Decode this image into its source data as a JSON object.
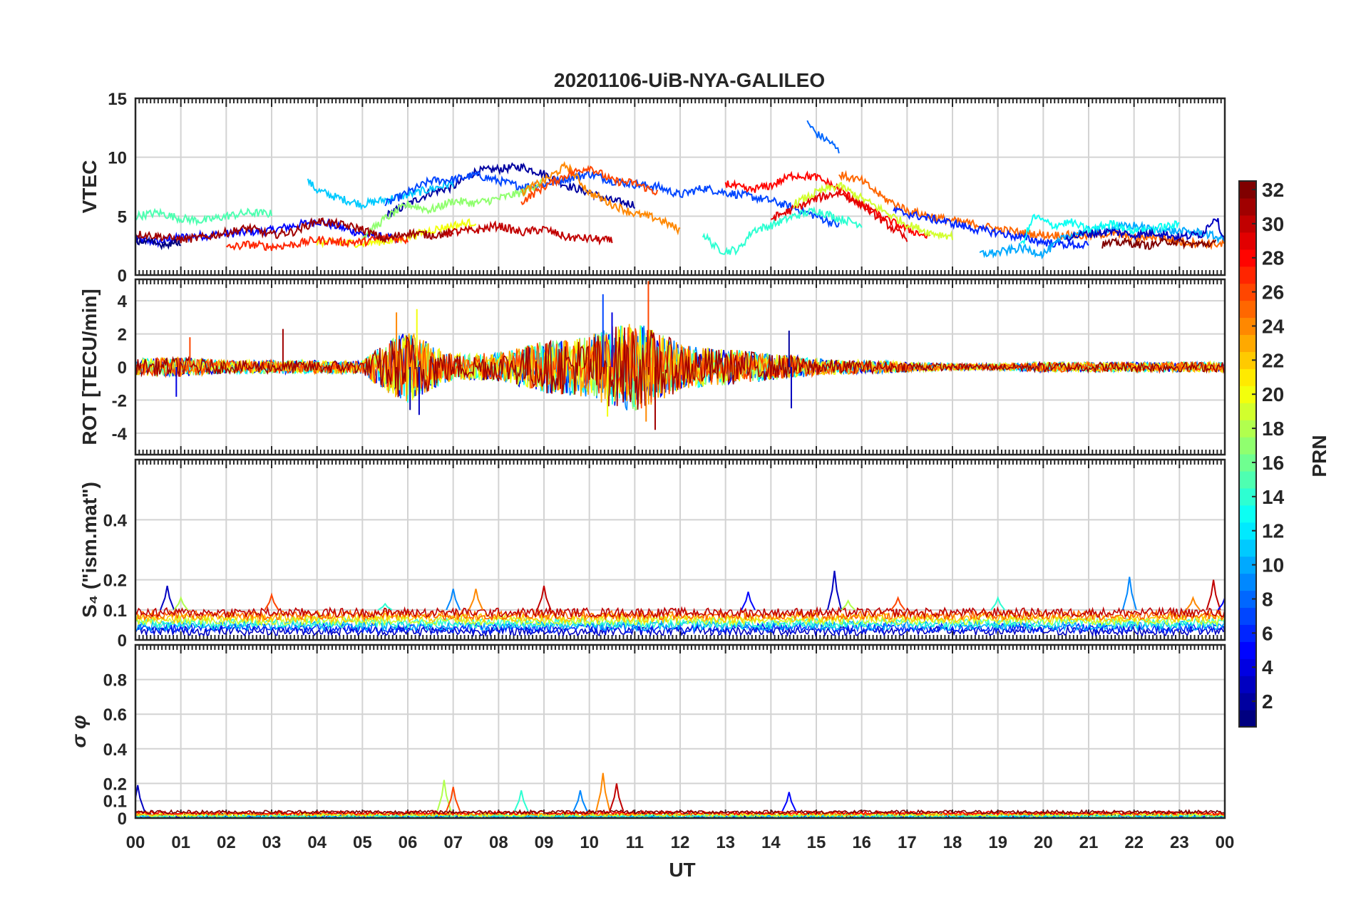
{
  "chart_data": {
    "type": "line",
    "title": "20201106-UiB-NYA-GALILEO",
    "xlabel": "UT",
    "x_ticks": [
      "00",
      "01",
      "02",
      "03",
      "04",
      "05",
      "06",
      "07",
      "08",
      "09",
      "10",
      "11",
      "12",
      "13",
      "14",
      "15",
      "16",
      "17",
      "18",
      "19",
      "20",
      "21",
      "22",
      "23",
      "00"
    ],
    "xlim_hours": [
      0,
      24
    ],
    "colormap": "jet",
    "colorbar": {
      "label": "PRN",
      "range": [
        1,
        32
      ],
      "ticks": [
        "2",
        "4",
        "6",
        "8",
        "10",
        "12",
        "14",
        "16",
        "18",
        "20",
        "22",
        "24",
        "26",
        "28",
        "30",
        "32"
      ]
    },
    "panels": [
      {
        "ylabel": "VTEC",
        "ylim": [
          0,
          15
        ],
        "yticks": [
          "0",
          "5",
          "10",
          "15"
        ],
        "series": [
          {
            "prn": 5,
            "x": [
              0,
              0.5,
              1,
              2,
              3,
              4,
              5,
              5.8
            ],
            "y": [
              3.0,
              2.8,
              3.2,
              3.5,
              3.8,
              4.6,
              3.5,
              3.0
            ]
          },
          {
            "prn": 2,
            "x": [
              5.5,
              6,
              6.5,
              7,
              7.5,
              8,
              8.5,
              9,
              9.5,
              10,
              10.5,
              11
            ],
            "y": [
              5.0,
              6.0,
              7.0,
              7.5,
              8.8,
              9.0,
              9.2,
              8.6,
              7.6,
              7.0,
              6.3,
              6.0
            ]
          },
          {
            "prn": 11,
            "x": [
              3.8,
              4,
              4.5,
              5,
              5.5,
              6,
              6.5,
              7
            ],
            "y": [
              8.0,
              7.2,
              6.5,
              6.0,
              6.4,
              6.8,
              7.3,
              7.8
            ]
          },
          {
            "prn": 7,
            "x": [
              5.5,
              6,
              6.5,
              7,
              7.5,
              8,
              8.5,
              9,
              9.5,
              10,
              10.5,
              11,
              11.5,
              12,
              12.5,
              13,
              13.5,
              14,
              14.5,
              15,
              15.5
            ],
            "y": [
              6.0,
              7.0,
              8.0,
              8.1,
              8.5,
              8.0,
              7.5,
              7.7,
              8.2,
              8.6,
              8.0,
              7.7,
              7.5,
              6.8,
              7.4,
              7.0,
              6.7,
              6.3,
              5.7,
              5.0,
              4.2
            ]
          },
          {
            "prn": 8,
            "x": [
              14.8,
              15,
              15.3,
              15.5
            ],
            "y": [
              13.0,
              12.0,
              11.3,
              10.5
            ]
          },
          {
            "prn": 15,
            "x": [
              0,
              0.5,
              1,
              1.5,
              2,
              2.5,
              3
            ],
            "y": [
              5.0,
              5.3,
              4.8,
              4.6,
              5.0,
              5.3,
              5.2
            ]
          },
          {
            "prn": 14,
            "x": [
              12.5,
              12.8,
              13,
              13.3,
              13.6,
              14,
              14.5,
              15,
              15.5,
              16
            ],
            "y": [
              3.5,
              2.3,
              2.0,
              2.2,
              3.8,
              4.2,
              5.0,
              5.5,
              4.8,
              4.3
            ]
          },
          {
            "prn": 17,
            "x": [
              5,
              5.5,
              6,
              6.5,
              7,
              7.5,
              8,
              8.5,
              9
            ],
            "y": [
              3.2,
              4.8,
              6.0,
              5.5,
              6.3,
              6.1,
              6.5,
              7.0,
              8.0
            ]
          },
          {
            "prn": 20,
            "x": [
              4,
              5,
              5.8,
              6.5,
              7,
              7.5
            ],
            "y": [
              2.8,
              2.7,
              3.0,
              3.8,
              4.2,
              4.5
            ]
          },
          {
            "prn": 24,
            "x": [
              8.5,
              9,
              9.5,
              10,
              10.5,
              11,
              11.5,
              12
            ],
            "y": [
              7.0,
              8.0,
              9.3,
              7.0,
              6.0,
              5.2,
              4.8,
              3.8
            ]
          },
          {
            "prn": 26,
            "x": [
              8.5,
              9,
              9.5,
              10,
              10.5,
              11,
              11.5
            ],
            "y": [
              6.2,
              7.5,
              8.5,
              9.2,
              8.0,
              7.8,
              7.0
            ]
          },
          {
            "prn": 27,
            "x": [
              2,
              2.5,
              3,
              3.5,
              4,
              4.5,
              5,
              5.5,
              6
            ],
            "y": [
              2.3,
              2.6,
              2.4,
              2.6,
              3.0,
              2.8,
              2.8,
              3.2,
              3.0
            ]
          },
          {
            "prn": 31,
            "x": [
              0,
              0.5,
              1,
              1.5,
              2,
              2.5,
              3,
              3.5,
              4,
              4.5,
              5,
              5.5,
              6,
              6.5,
              7
            ],
            "y": [
              3.5,
              3.3,
              3.0,
              3.2,
              3.6,
              4.0,
              3.4,
              3.7,
              4.6,
              4.3,
              3.9,
              3.0,
              3.6,
              3.4,
              3.5
            ]
          },
          {
            "prn": 30,
            "x": [
              6.8,
              7.5,
              8,
              8.5,
              9,
              9.5,
              10,
              10.5
            ],
            "y": [
              3.6,
              3.8,
              4.2,
              3.6,
              3.9,
              3.2,
              3.1,
              2.9
            ]
          },
          {
            "prn": 28,
            "x": [
              13,
              13.5,
              14,
              14.5,
              15,
              15.5,
              16,
              16.5,
              17,
              17.5
            ],
            "y": [
              7.8,
              7.2,
              7.6,
              8.5,
              8.3,
              7.3,
              5.9,
              4.8,
              3.9,
              3.2
            ]
          },
          {
            "prn": 29,
            "x": [
              14,
              14.5,
              15,
              15.5,
              16,
              16.5,
              17
            ],
            "y": [
              4.8,
              5.6,
              6.5,
              7.0,
              6.0,
              4.5,
              3.0
            ]
          },
          {
            "prn": 19,
            "x": [
              14.5,
              15,
              15.5,
              16,
              16.5,
              17,
              17.5,
              18
            ],
            "y": [
              6.0,
              7.0,
              7.6,
              6.5,
              5.4,
              4.3,
              3.6,
              3.3
            ]
          },
          {
            "prn": 25,
            "x": [
              15.5,
              16,
              16.5,
              17,
              17.5,
              18,
              18.5,
              19,
              19.5,
              20,
              20.5,
              21,
              21.5,
              22,
              22.5,
              23,
              23.5,
              24
            ],
            "y": [
              8.5,
              8.0,
              6.5,
              5.5,
              5.0,
              4.6,
              4.3,
              3.9,
              3.6,
              3.4,
              3.4,
              3.3,
              3.6,
              3.1,
              3.3,
              2.8,
              2.7,
              2.6
            ]
          },
          {
            "prn": 6,
            "x": [
              16.7,
              17,
              17.5,
              18,
              18.5,
              19,
              19.5,
              20,
              20.5,
              21
            ],
            "y": [
              5.5,
              5.2,
              4.8,
              4.4,
              3.9,
              3.6,
              3.2,
              2.8,
              2.6,
              2.5
            ]
          },
          {
            "prn": 10,
            "x": [
              18.6,
              19,
              19.5,
              20,
              20.5,
              21,
              21.5,
              22,
              22.5,
              23,
              23.5,
              24
            ],
            "y": [
              1.8,
              1.9,
              2.3,
              1.8,
              3.3,
              3.8,
              4.0,
              4.2,
              3.8,
              3.7,
              3.6,
              3.0
            ]
          },
          {
            "prn": 13,
            "x": [
              19.5,
              19.8,
              20.2,
              20.6,
              21,
              21.5,
              22,
              22.5,
              23
            ],
            "y": [
              2.4,
              5.0,
              4.2,
              4.5,
              3.8,
              4.4,
              3.7,
              4.0,
              4.3
            ]
          },
          {
            "prn": 3,
            "x": [
              20.5,
              21,
              21.5,
              22,
              22.5,
              23,
              23.5,
              23.8,
              24
            ],
            "y": [
              3.2,
              3.5,
              3.7,
              3.4,
              3.6,
              3.2,
              3.5,
              5.0,
              2.9
            ]
          },
          {
            "prn": 32,
            "x": [
              21.3,
              21.8,
              22.3,
              22.8,
              23.3,
              23.8
            ],
            "y": [
              2.6,
              2.8,
              2.5,
              2.9,
              2.6,
              2.7
            ]
          },
          {
            "prn": 1,
            "x": [
              0,
              0.5,
              1
            ],
            "y": [
              3.0,
              2.6,
              2.8
            ]
          }
        ]
      },
      {
        "ylabel": "ROT [TECU/min]",
        "ylim": [
          -5.3,
          5.3
        ],
        "yticks": [
          "-4",
          "-2",
          "0",
          "2",
          "4"
        ],
        "envelope": {
          "x": [
            0,
            1,
            2,
            3,
            4,
            5,
            5.5,
            6,
            6.5,
            7,
            7.5,
            8,
            8.5,
            9,
            9.5,
            10,
            10.5,
            11,
            11.5,
            12,
            12.5,
            13,
            13.5,
            14,
            14.5,
            15,
            16,
            17,
            18,
            19,
            20,
            21,
            22,
            23,
            24
          ],
          "amplitude": [
            0.5,
            0.6,
            0.4,
            0.4,
            0.4,
            0.4,
            1.5,
            2.2,
            1.4,
            0.8,
            0.8,
            0.9,
            1.2,
            1.6,
            1.7,
            1.9,
            2.5,
            2.7,
            2.2,
            1.4,
            1.2,
            1.1,
            1.0,
            0.8,
            0.7,
            0.5,
            0.4,
            0.3,
            0.2,
            0.2,
            0.3,
            0.3,
            0.3,
            0.3,
            0.3
          ]
        },
        "spikes": [
          {
            "x": 0.9,
            "y": -1.8
          },
          {
            "x": 1.2,
            "y": 1.8
          },
          {
            "x": 3.25,
            "y": 2.3
          },
          {
            "x": 5.75,
            "y": 3.3
          },
          {
            "x": 6.2,
            "y": 3.5
          },
          {
            "x": 6.25,
            "y": -2.9
          },
          {
            "x": 6.05,
            "y": -2.6
          },
          {
            "x": 10.3,
            "y": 4.4
          },
          {
            "x": 10.5,
            "y": 3.3
          },
          {
            "x": 11.3,
            "y": 5.2
          },
          {
            "x": 11.45,
            "y": -3.8
          },
          {
            "x": 11.25,
            "y": -3.3
          },
          {
            "x": 10.4,
            "y": -3.0
          },
          {
            "x": 14.45,
            "y": -2.5
          },
          {
            "x": 14.4,
            "y": 2.2
          }
        ]
      },
      {
        "ylabel": "S₄ (\"ism.mat\")",
        "ylim": [
          0,
          0.6
        ],
        "yticks": [
          "0",
          "0.1",
          "0.2",
          "0.4"
        ],
        "baseline": [
          0.03,
          0.1
        ],
        "peaks": [
          {
            "x": 0.7,
            "y": 0.18
          },
          {
            "x": 1.0,
            "y": 0.14
          },
          {
            "x": 3.0,
            "y": 0.15
          },
          {
            "x": 5.5,
            "y": 0.12
          },
          {
            "x": 7.0,
            "y": 0.17
          },
          {
            "x": 7.5,
            "y": 0.17
          },
          {
            "x": 9.0,
            "y": 0.18
          },
          {
            "x": 13.5,
            "y": 0.16
          },
          {
            "x": 15.4,
            "y": 0.23
          },
          {
            "x": 15.7,
            "y": 0.13
          },
          {
            "x": 16.8,
            "y": 0.14
          },
          {
            "x": 19.0,
            "y": 0.14
          },
          {
            "x": 21.9,
            "y": 0.21
          },
          {
            "x": 23.3,
            "y": 0.14
          },
          {
            "x": 23.75,
            "y": 0.2
          },
          {
            "x": 24.0,
            "y": 0.14
          }
        ]
      },
      {
        "ylabel": "σ φ",
        "ylim": [
          0,
          1
        ],
        "yticks": [
          "0",
          "0.1",
          "0.2",
          "0.4",
          "0.6",
          "0.8"
        ],
        "baseline": [
          0.0,
          0.04
        ],
        "peaks": [
          {
            "x": 0.05,
            "y": 0.19
          },
          {
            "x": 6.8,
            "y": 0.22
          },
          {
            "x": 7.0,
            "y": 0.18
          },
          {
            "x": 8.5,
            "y": 0.16
          },
          {
            "x": 9.8,
            "y": 0.16
          },
          {
            "x": 10.3,
            "y": 0.26
          },
          {
            "x": 10.6,
            "y": 0.2
          },
          {
            "x": 14.4,
            "y": 0.15
          }
        ]
      }
    ]
  }
}
